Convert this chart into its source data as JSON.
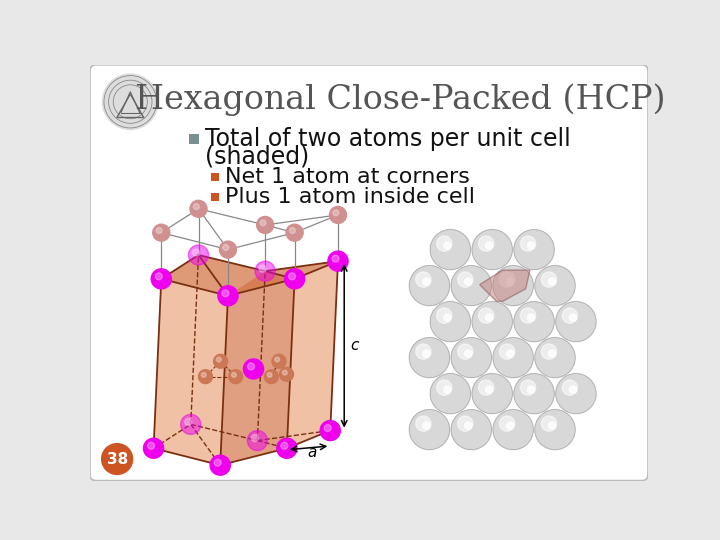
{
  "title": "Hexagonal Close-Packed (HCP)",
  "bullet1_text1": "Total of two atoms per unit cell",
  "bullet1_text2": "(shaded)",
  "bullet2_text": "Net 1 atom at corners",
  "bullet3_text": "Plus 1 atom inside cell",
  "bullet1_color": "#7a9090",
  "bullet23_color": "#cc5522",
  "title_color": "#555555",
  "bg_color": "#ffffff",
  "slide_bg": "#e8e8e8",
  "page_num": "38",
  "page_num_bg": "#cc5522",
  "text_color": "#111111",
  "title_fontsize": 24,
  "body_fontsize": 17,
  "sub_fontsize": 16,
  "face_color": "#d4774a",
  "face_color2": "#e8996a",
  "edge_color": "#7a3010",
  "atom_magenta": "#ee00ee",
  "atom_pink": "#d09090",
  "atom_mid": "#cc7755",
  "sphere_color": "#cccccc",
  "hex_shade": "#c08080"
}
